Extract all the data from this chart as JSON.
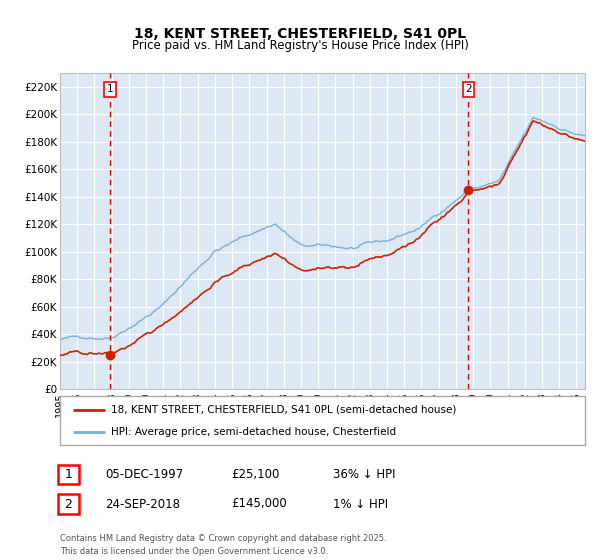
{
  "title1": "18, KENT STREET, CHESTERFIELD, S41 0PL",
  "title2": "Price paid vs. HM Land Registry's House Price Index (HPI)",
  "sale1_date": "05-DEC-1997",
  "sale1_price": 25100,
  "sale1_pct": "36% ↓ HPI",
  "sale2_date": "24-SEP-2018",
  "sale2_price": 145000,
  "sale2_pct": "1% ↓ HPI",
  "sale1_year": 1997.92,
  "sale2_year": 2018.73,
  "legend1": "18, KENT STREET, CHESTERFIELD, S41 0PL (semi-detached house)",
  "legend2": "HPI: Average price, semi-detached house, Chesterfield",
  "footer": "Contains HM Land Registry data © Crown copyright and database right 2025.\nThis data is licensed under the Open Government Licence v3.0.",
  "ylabel_ticks": [
    "£0",
    "£20K",
    "£40K",
    "£60K",
    "£80K",
    "£100K",
    "£120K",
    "£140K",
    "£160K",
    "£180K",
    "£200K",
    "£220K"
  ],
  "ylim": [
    0,
    230000
  ],
  "xlim_start": 1995.0,
  "xlim_end": 2025.5,
  "bg_color": "#dce9f5",
  "grid_color": "#ffffff",
  "hpi_color": "#7bafd4",
  "price_color": "#cc2200",
  "vline_color": "#dd0000",
  "marker_color": "#cc2200"
}
